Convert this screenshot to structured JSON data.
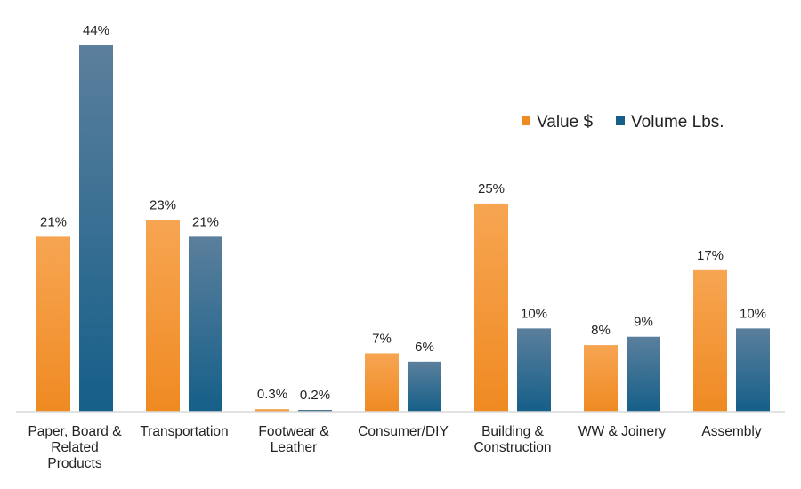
{
  "chart_data": {
    "type": "bar",
    "title": "",
    "xlabel": "",
    "ylabel": "",
    "ylim": [
      0,
      44
    ],
    "grid": false,
    "legend_position": "top-right",
    "categories": [
      [
        "Paper, Board &",
        "Related",
        "Products"
      ],
      [
        "Transportation"
      ],
      [
        "Footwear &",
        "Leather"
      ],
      [
        "Consumer/DIY"
      ],
      [
        "Building &",
        "Construction"
      ],
      [
        "WW & Joinery"
      ],
      [
        "Assembly"
      ]
    ],
    "series": [
      {
        "name": "Value $",
        "color_top": "#f7a552",
        "color_bottom": "#ef8a22",
        "values": [
          21,
          23,
          0.3,
          7,
          25,
          8,
          17
        ],
        "labels": [
          "21%",
          "23%",
          "0.3%",
          "7%",
          "25%",
          "8%",
          "17%"
        ]
      },
      {
        "name": "Volume Lbs.",
        "color_top": "#5b7f9c",
        "color_bottom": "#155f89",
        "values": [
          44,
          21,
          0.2,
          6,
          10,
          9,
          10
        ],
        "labels": [
          "44%",
          "21%",
          "0.2%",
          "6%",
          "10%",
          "9%",
          "10%"
        ]
      }
    ]
  }
}
